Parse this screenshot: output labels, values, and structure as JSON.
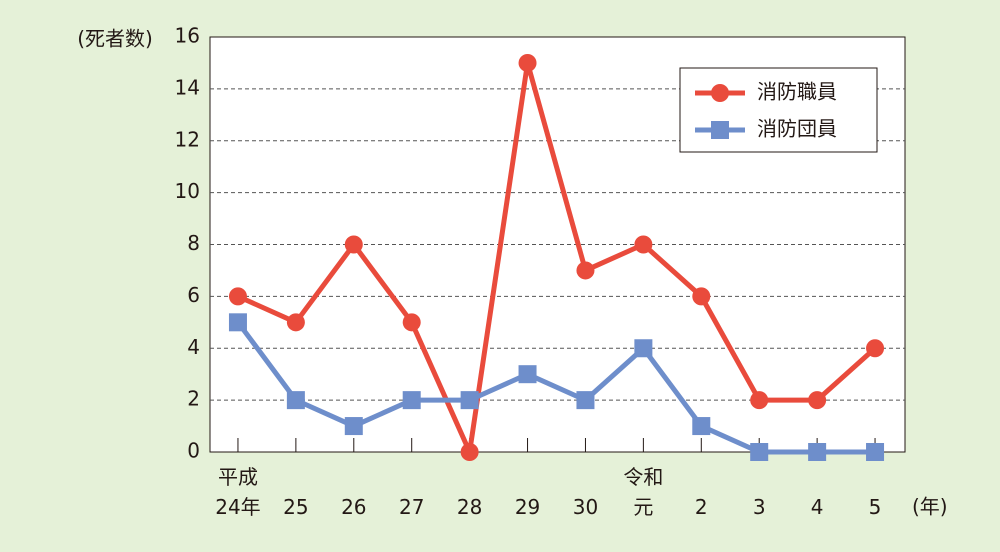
{
  "chart_data": {
    "type": "line",
    "y_label": "(死者数)",
    "x_label": "(年)",
    "categories": [
      "平成\n24年",
      "25",
      "26",
      "27",
      "28",
      "29",
      "30",
      "令和\n元",
      "2",
      "3",
      "4",
      "5"
    ],
    "series": [
      {
        "name": "消防職員",
        "color": "#e94b3c",
        "marker": "circle",
        "values": [
          6,
          5,
          8,
          5,
          0,
          15,
          7,
          8,
          6,
          2,
          2,
          4
        ]
      },
      {
        "name": "消防団員",
        "color": "#6e8ecb",
        "marker": "square",
        "values": [
          5,
          2,
          1,
          2,
          2,
          3,
          2,
          4,
          1,
          0,
          0,
          0
        ]
      }
    ],
    "ylim": [
      0,
      16
    ],
    "yticks": [
      0,
      2,
      4,
      6,
      8,
      10,
      12,
      14,
      16
    ],
    "grid": true
  }
}
